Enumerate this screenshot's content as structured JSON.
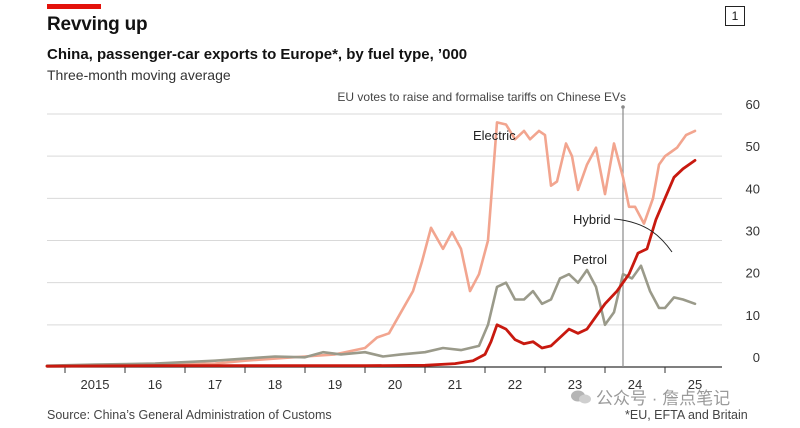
{
  "header": {
    "title": "Revving up",
    "subtitle": "China, passenger-car exports to Europe*, by fuel type, ’000",
    "subsubtitle": "Three-month moving average",
    "chart_number": "1"
  },
  "footer": {
    "source": "Source: China’s General Administration of Customs",
    "footnote": "*EU, EFTA and Britain"
  },
  "watermark": {
    "text": "公众号 · 詹点笔记"
  },
  "colors": {
    "electric": "#f2a58f",
    "hybrid": "#c8190f",
    "petrol": "#9a9a8a",
    "grid": "#d9d9d9",
    "axis": "#333333",
    "accent": "#e3120b"
  },
  "chart_data": {
    "type": "line",
    "title": "China, passenger-car exports to Europe*, by fuel type, ’000",
    "xlabel": "",
    "ylabel": "’000",
    "xlim": [
      2014.7,
      2025.95
    ],
    "ylim": [
      0,
      60
    ],
    "yticks": [
      0,
      10,
      20,
      30,
      40,
      50,
      60
    ],
    "year_labels": [
      "2015",
      "16",
      "17",
      "18",
      "19",
      "20",
      "21",
      "22",
      "23",
      "24",
      "25"
    ],
    "annotation": {
      "text": "EU votes to raise and formalise tariffs on Chinese EVs",
      "x": 2024.3
    },
    "series": [
      {
        "name": "Electric",
        "x": [
          2014.7,
          2015.5,
          2016.5,
          2017.5,
          2018.0,
          2018.5,
          2019.0,
          2019.5,
          2020.0,
          2020.2,
          2020.4,
          2020.6,
          2020.8,
          2020.95,
          2021.1,
          2021.3,
          2021.45,
          2021.6,
          2021.75,
          2021.9,
          2022.05,
          2022.2,
          2022.35,
          2022.5,
          2022.65,
          2022.75,
          2022.9,
          2023.0,
          2023.1,
          2023.2,
          2023.35,
          2023.45,
          2023.55,
          2023.7,
          2023.85,
          2024.0,
          2024.15,
          2024.3,
          2024.4,
          2024.5,
          2024.65,
          2024.8,
          2024.9,
          2025.0,
          2025.1,
          2025.2,
          2025.35,
          2025.5
        ],
        "values": [
          0.2,
          0.4,
          0.5,
          0.8,
          1.5,
          2.0,
          2.5,
          3.0,
          4.5,
          7.0,
          8.0,
          13.0,
          18.0,
          25.0,
          33.0,
          28.0,
          32.0,
          28.0,
          18.0,
          22.0,
          30.0,
          58.0,
          57.5,
          54.0,
          56.0,
          54.0,
          56.0,
          55.0,
          43.0,
          44.0,
          53.0,
          50.0,
          42.0,
          48.0,
          52.0,
          41.0,
          53.0,
          45.0,
          38.0,
          38.0,
          34.0,
          40.0,
          48.0,
          50.0,
          51.0,
          52.0,
          55.0,
          56.0
        ]
      },
      {
        "name": "Hybrid",
        "x": [
          2014.7,
          2016.5,
          2018.5,
          2020.0,
          2021.0,
          2021.5,
          2021.8,
          2022.0,
          2022.1,
          2022.2,
          2022.35,
          2022.5,
          2022.65,
          2022.8,
          2022.95,
          2023.1,
          2023.25,
          2023.4,
          2023.55,
          2023.7,
          2023.85,
          2024.0,
          2024.2,
          2024.4,
          2024.55,
          2024.7,
          2024.85,
          2025.0,
          2025.15,
          2025.3,
          2025.5
        ],
        "values": [
          0.2,
          0.3,
          0.3,
          0.3,
          0.4,
          0.8,
          1.5,
          3.0,
          6.0,
          10.0,
          9.0,
          6.5,
          5.5,
          6.0,
          4.5,
          5.0,
          7.0,
          9.0,
          8.0,
          9.0,
          12.0,
          15.0,
          18.0,
          22.0,
          27.0,
          28.0,
          35.0,
          40.0,
          45.0,
          47.0,
          49.0
        ]
      },
      {
        "name": "Petrol",
        "x": [
          2014.7,
          2015.5,
          2016.5,
          2017.5,
          2018.0,
          2018.5,
          2019.0,
          2019.3,
          2019.6,
          2020.0,
          2020.3,
          2020.6,
          2021.0,
          2021.3,
          2021.6,
          2021.9,
          2022.05,
          2022.2,
          2022.35,
          2022.5,
          2022.65,
          2022.8,
          2022.95,
          2023.1,
          2023.25,
          2023.4,
          2023.55,
          2023.7,
          2023.85,
          2024.0,
          2024.15,
          2024.3,
          2024.45,
          2024.6,
          2024.75,
          2024.9,
          2025.0,
          2025.15,
          2025.3,
          2025.5
        ],
        "values": [
          0.3,
          0.6,
          0.8,
          1.5,
          2.0,
          2.5,
          2.3,
          3.5,
          3.0,
          3.5,
          2.5,
          3.0,
          3.5,
          4.5,
          4.0,
          5.0,
          10.0,
          19.0,
          20.0,
          16.0,
          16.0,
          18.0,
          15.0,
          16.0,
          21.0,
          22.0,
          20.0,
          23.0,
          19.0,
          10.0,
          13.0,
          22.0,
          21.0,
          24.0,
          18.0,
          14.0,
          14.0,
          16.5,
          16.0,
          15.0
        ]
      }
    ]
  }
}
